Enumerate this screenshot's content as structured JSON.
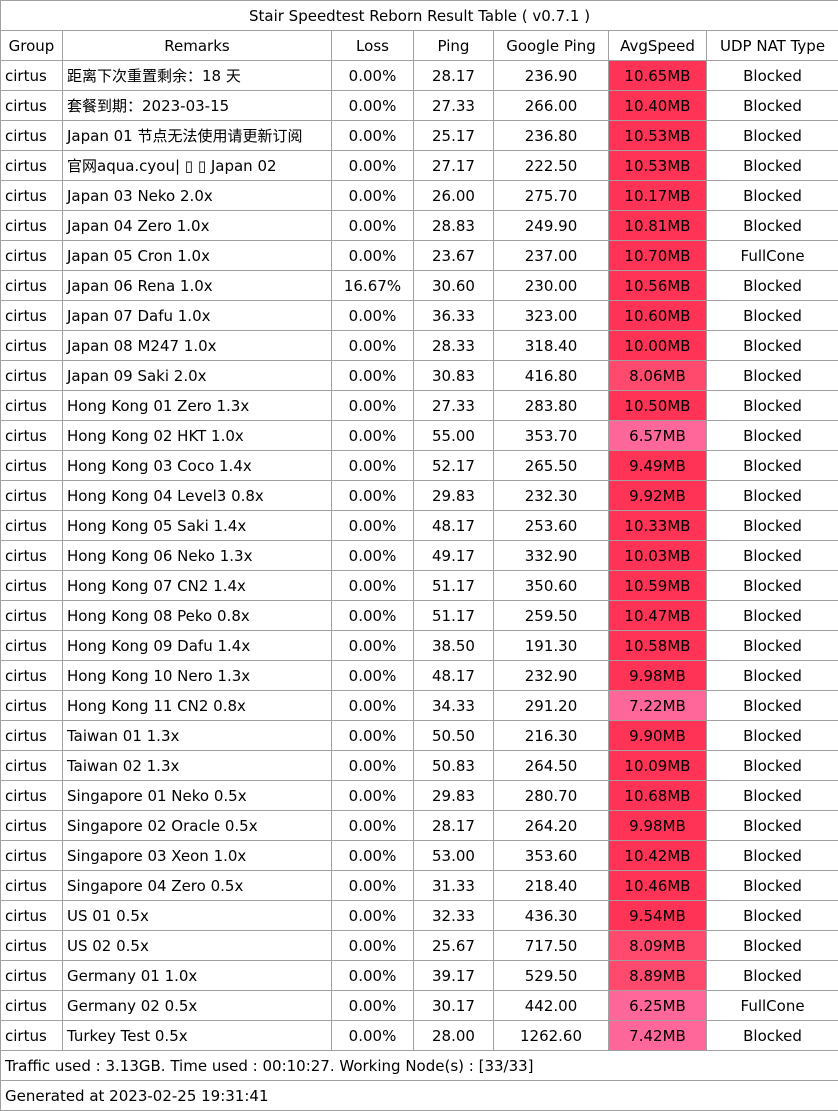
{
  "chart_data": {
    "type": "table",
    "title": "Stair Speedtest Reborn Result Table ( v0.7.1 )",
    "columns": [
      "Group",
      "Remarks",
      "Loss",
      "Ping",
      "Google Ping",
      "AvgSpeed",
      "UDP NAT Type"
    ],
    "rows": [
      [
        "cirtus",
        "距离下次重置剩余：18 天",
        "0.00%",
        "28.17",
        "236.90",
        "10.65MB",
        "Blocked"
      ],
      [
        "cirtus",
        "套餐到期：2023-03-15",
        "0.00%",
        "27.33",
        "266.00",
        "10.40MB",
        "Blocked"
      ],
      [
        "cirtus",
        "Japan 01 节点无法使用请更新订阅",
        "0.00%",
        "25.17",
        "236.80",
        "10.53MB",
        "Blocked"
      ],
      [
        "cirtus",
        "官网aqua.cyou| ▯ ▯ Japan 02",
        "0.00%",
        "27.17",
        "222.50",
        "10.53MB",
        "Blocked"
      ],
      [
        "cirtus",
        "Japan 03 Neko 2.0x",
        "0.00%",
        "26.00",
        "275.70",
        "10.17MB",
        "Blocked"
      ],
      [
        "cirtus",
        "Japan 04 Zero 1.0x",
        "0.00%",
        "28.83",
        "249.90",
        "10.81MB",
        "Blocked"
      ],
      [
        "cirtus",
        "Japan 05 Cron 1.0x",
        "0.00%",
        "23.67",
        "237.00",
        "10.70MB",
        "FullCone"
      ],
      [
        "cirtus",
        "Japan 06 Rena 1.0x",
        "16.67%",
        "30.60",
        "230.00",
        "10.56MB",
        "Blocked"
      ],
      [
        "cirtus",
        "Japan 07 Dafu 1.0x",
        "0.00%",
        "36.33",
        "323.00",
        "10.60MB",
        "Blocked"
      ],
      [
        "cirtus",
        "Japan 08 M247 1.0x",
        "0.00%",
        "28.33",
        "318.40",
        "10.00MB",
        "Blocked"
      ],
      [
        "cirtus",
        "Japan 09 Saki 2.0x",
        "0.00%",
        "30.83",
        "416.80",
        "8.06MB",
        "Blocked"
      ],
      [
        "cirtus",
        "Hong Kong 01 Zero 1.3x",
        "0.00%",
        "27.33",
        "283.80",
        "10.50MB",
        "Blocked"
      ],
      [
        "cirtus",
        "Hong Kong 02 HKT 1.0x",
        "0.00%",
        "55.00",
        "353.70",
        "6.57MB",
        "Blocked"
      ],
      [
        "cirtus",
        "Hong Kong 03 Coco 1.4x",
        "0.00%",
        "52.17",
        "265.50",
        "9.49MB",
        "Blocked"
      ],
      [
        "cirtus",
        "Hong Kong 04 Level3 0.8x",
        "0.00%",
        "29.83",
        "232.30",
        "9.92MB",
        "Blocked"
      ],
      [
        "cirtus",
        "Hong Kong 05 Saki 1.4x",
        "0.00%",
        "48.17",
        "253.60",
        "10.33MB",
        "Blocked"
      ],
      [
        "cirtus",
        "Hong Kong 06 Neko 1.3x",
        "0.00%",
        "49.17",
        "332.90",
        "10.03MB",
        "Blocked"
      ],
      [
        "cirtus",
        "Hong Kong 07 CN2 1.4x",
        "0.00%",
        "51.17",
        "350.60",
        "10.59MB",
        "Blocked"
      ],
      [
        "cirtus",
        "Hong Kong 08 Peko 0.8x",
        "0.00%",
        "51.17",
        "259.50",
        "10.47MB",
        "Blocked"
      ],
      [
        "cirtus",
        "Hong Kong 09 Dafu 1.4x",
        "0.00%",
        "38.50",
        "191.30",
        "10.58MB",
        "Blocked"
      ],
      [
        "cirtus",
        "Hong Kong 10 Nero 1.3x",
        "0.00%",
        "48.17",
        "232.90",
        "9.98MB",
        "Blocked"
      ],
      [
        "cirtus",
        "Hong Kong 11 CN2 0.8x",
        "0.00%",
        "34.33",
        "291.20",
        "7.22MB",
        "Blocked"
      ],
      [
        "cirtus",
        "Taiwan 01 1.3x",
        "0.00%",
        "50.50",
        "216.30",
        "9.90MB",
        "Blocked"
      ],
      [
        "cirtus",
        "Taiwan 02 1.3x",
        "0.00%",
        "50.83",
        "264.50",
        "10.09MB",
        "Blocked"
      ],
      [
        "cirtus",
        "Singapore 01 Neko 0.5x",
        "0.00%",
        "29.83",
        "280.70",
        "10.68MB",
        "Blocked"
      ],
      [
        "cirtus",
        "Singapore 02 Oracle 0.5x",
        "0.00%",
        "28.17",
        "264.20",
        "9.98MB",
        "Blocked"
      ],
      [
        "cirtus",
        "Singapore 03 Xeon 1.0x",
        "0.00%",
        "53.00",
        "353.60",
        "10.42MB",
        "Blocked"
      ],
      [
        "cirtus",
        "Singapore 04 Zero 0.5x",
        "0.00%",
        "31.33",
        "218.40",
        "10.46MB",
        "Blocked"
      ],
      [
        "cirtus",
        "US 01 0.5x",
        "0.00%",
        "32.33",
        "436.30",
        "9.54MB",
        "Blocked"
      ],
      [
        "cirtus",
        "US 02  0.5x",
        "0.00%",
        "25.67",
        "717.50",
        "8.09MB",
        "Blocked"
      ],
      [
        "cirtus",
        "Germany 01 1.0x",
        "0.00%",
        "39.17",
        "529.50",
        "8.89MB",
        "Blocked"
      ],
      [
        "cirtus",
        "Germany 02 0.5x",
        "0.00%",
        "30.17",
        "442.00",
        "6.25MB",
        "FullCone"
      ],
      [
        "cirtus",
        "Turkey Test 0.5x",
        "0.00%",
        "28.00",
        "1262.60",
        "7.42MB",
        "Blocked"
      ]
    ],
    "speed_colors": {
      "high": "#ff3355",
      "mid": "#ff4a6e",
      "low": "#ff6699"
    },
    "footer_traffic": "Traffic used : 3.13GB. Time used : 00:10:27. Working Node(s) : [33/33]",
    "footer_generated": "Generated at 2023-02-25 19:31:41"
  }
}
